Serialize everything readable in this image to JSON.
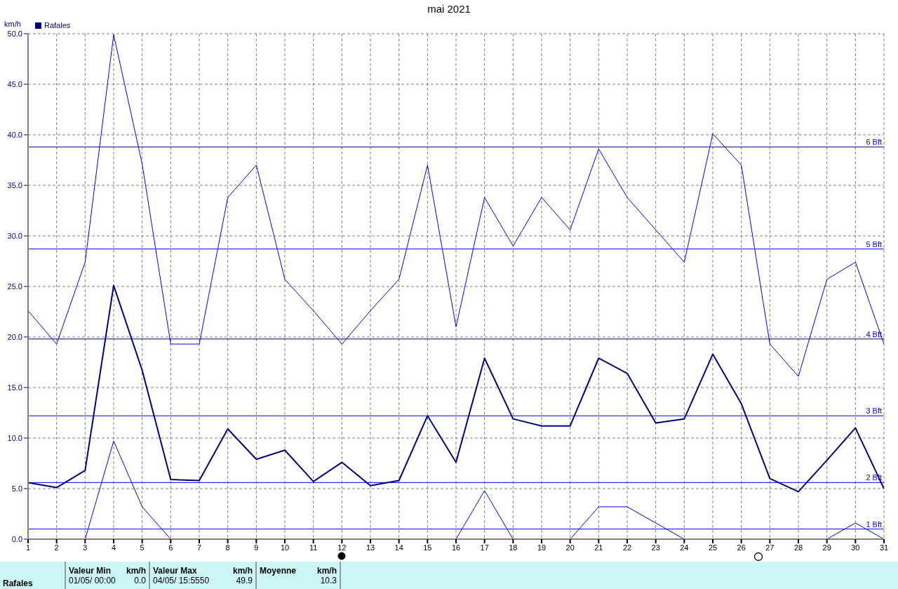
{
  "chart_data": {
    "type": "line",
    "title": "mai 2021",
    "ylabel": "km/h",
    "x": [
      1,
      2,
      3,
      4,
      5,
      6,
      7,
      8,
      9,
      10,
      11,
      12,
      13,
      14,
      15,
      16,
      17,
      18,
      19,
      20,
      21,
      22,
      23,
      24,
      25,
      26,
      27,
      28,
      29,
      30,
      31
    ],
    "series": [
      {
        "color": "#0000ff",
        "values": [
          22.6,
          19.3,
          27.4,
          49.9,
          37.1,
          19.3,
          19.3,
          33.8,
          37.0,
          25.7,
          22.6,
          19.3,
          22.6,
          25.7,
          37.0,
          21.0,
          33.8,
          29.0,
          33.8,
          30.6,
          38.6,
          33.8,
          30.6,
          27.4,
          40.1,
          37.0,
          19.3,
          16.1,
          25.7,
          27.4,
          19.3
        ]
      },
      {
        "name": "Rafales",
        "color": "#000080",
        "values": [
          5.6,
          5.1,
          6.8,
          25.1,
          16.7,
          5.9,
          5.8,
          10.9,
          7.9,
          8.8,
          5.7,
          7.6,
          5.3,
          5.8,
          12.2,
          7.6,
          17.9,
          11.9,
          11.2,
          11.2,
          17.9,
          16.4,
          11.5,
          11.9,
          18.3,
          13.4,
          6.0,
          4.7,
          7.8,
          11.0,
          5.0
        ]
      },
      {
        "color": "#0000ff",
        "values": [
          null,
          null,
          0,
          9.7,
          3.2,
          0,
          null,
          null,
          null,
          null,
          null,
          null,
          null,
          null,
          null,
          0,
          4.8,
          0,
          null,
          0,
          3.2,
          3.2,
          1.6,
          0,
          null,
          null,
          null,
          null,
          0,
          1.6,
          0
        ]
      }
    ],
    "xlim": [
      1,
      31
    ],
    "xticks": [
      1,
      2,
      3,
      4,
      5,
      6,
      7,
      8,
      9,
      10,
      11,
      12,
      13,
      14,
      15,
      16,
      17,
      18,
      19,
      20,
      21,
      22,
      23,
      24,
      25,
      26,
      27,
      28,
      29,
      30,
      31
    ],
    "ylim": [
      0,
      50
    ],
    "yticks": [
      {
        "value": 0,
        "label": "0.0"
      },
      {
        "value": 5,
        "label": "5.0"
      },
      {
        "value": 10,
        "label": "10.0"
      },
      {
        "value": 15,
        "label": "15.0"
      },
      {
        "value": 20,
        "label": "20.0"
      },
      {
        "value": 25,
        "label": "25.0"
      },
      {
        "value": 30,
        "label": "30.0"
      },
      {
        "value": 35,
        "label": "35.0"
      },
      {
        "value": 40,
        "label": "40.0"
      },
      {
        "value": 45,
        "label": "45.0"
      },
      {
        "value": 50,
        "label": "50.0"
      }
    ],
    "ref_lines": [
      {
        "axis": "y",
        "value": 1.0,
        "label": "1 Bft",
        "color": "#0000ff"
      },
      {
        "axis": "y",
        "value": 5.6,
        "label": "2 Bft",
        "color": "#0000ff"
      },
      {
        "axis": "y",
        "value": 12.2,
        "label": "3 Bft",
        "color": "#0000ff"
      },
      {
        "axis": "y",
        "value": 19.8,
        "label": "4 Bft",
        "color": "#000080"
      },
      {
        "axis": "y",
        "value": 28.7,
        "label": "5 Bft",
        "color": "#0000ff"
      },
      {
        "axis": "y",
        "value": 38.8,
        "label": "6 Bft",
        "color": "#000080"
      }
    ],
    "grid": true,
    "legend": "top left",
    "marker": "none",
    "line_style": "solid",
    "annotations": [
      "Valeur Min",
      "km/h",
      "Valeur Max",
      "km/h",
      "Moyenne",
      "km/h",
      "Rafales",
      "01/05/ 00:00",
      "0.0",
      "04/05/ 15:5550",
      "49.9",
      "10.3"
    ]
  }
}
